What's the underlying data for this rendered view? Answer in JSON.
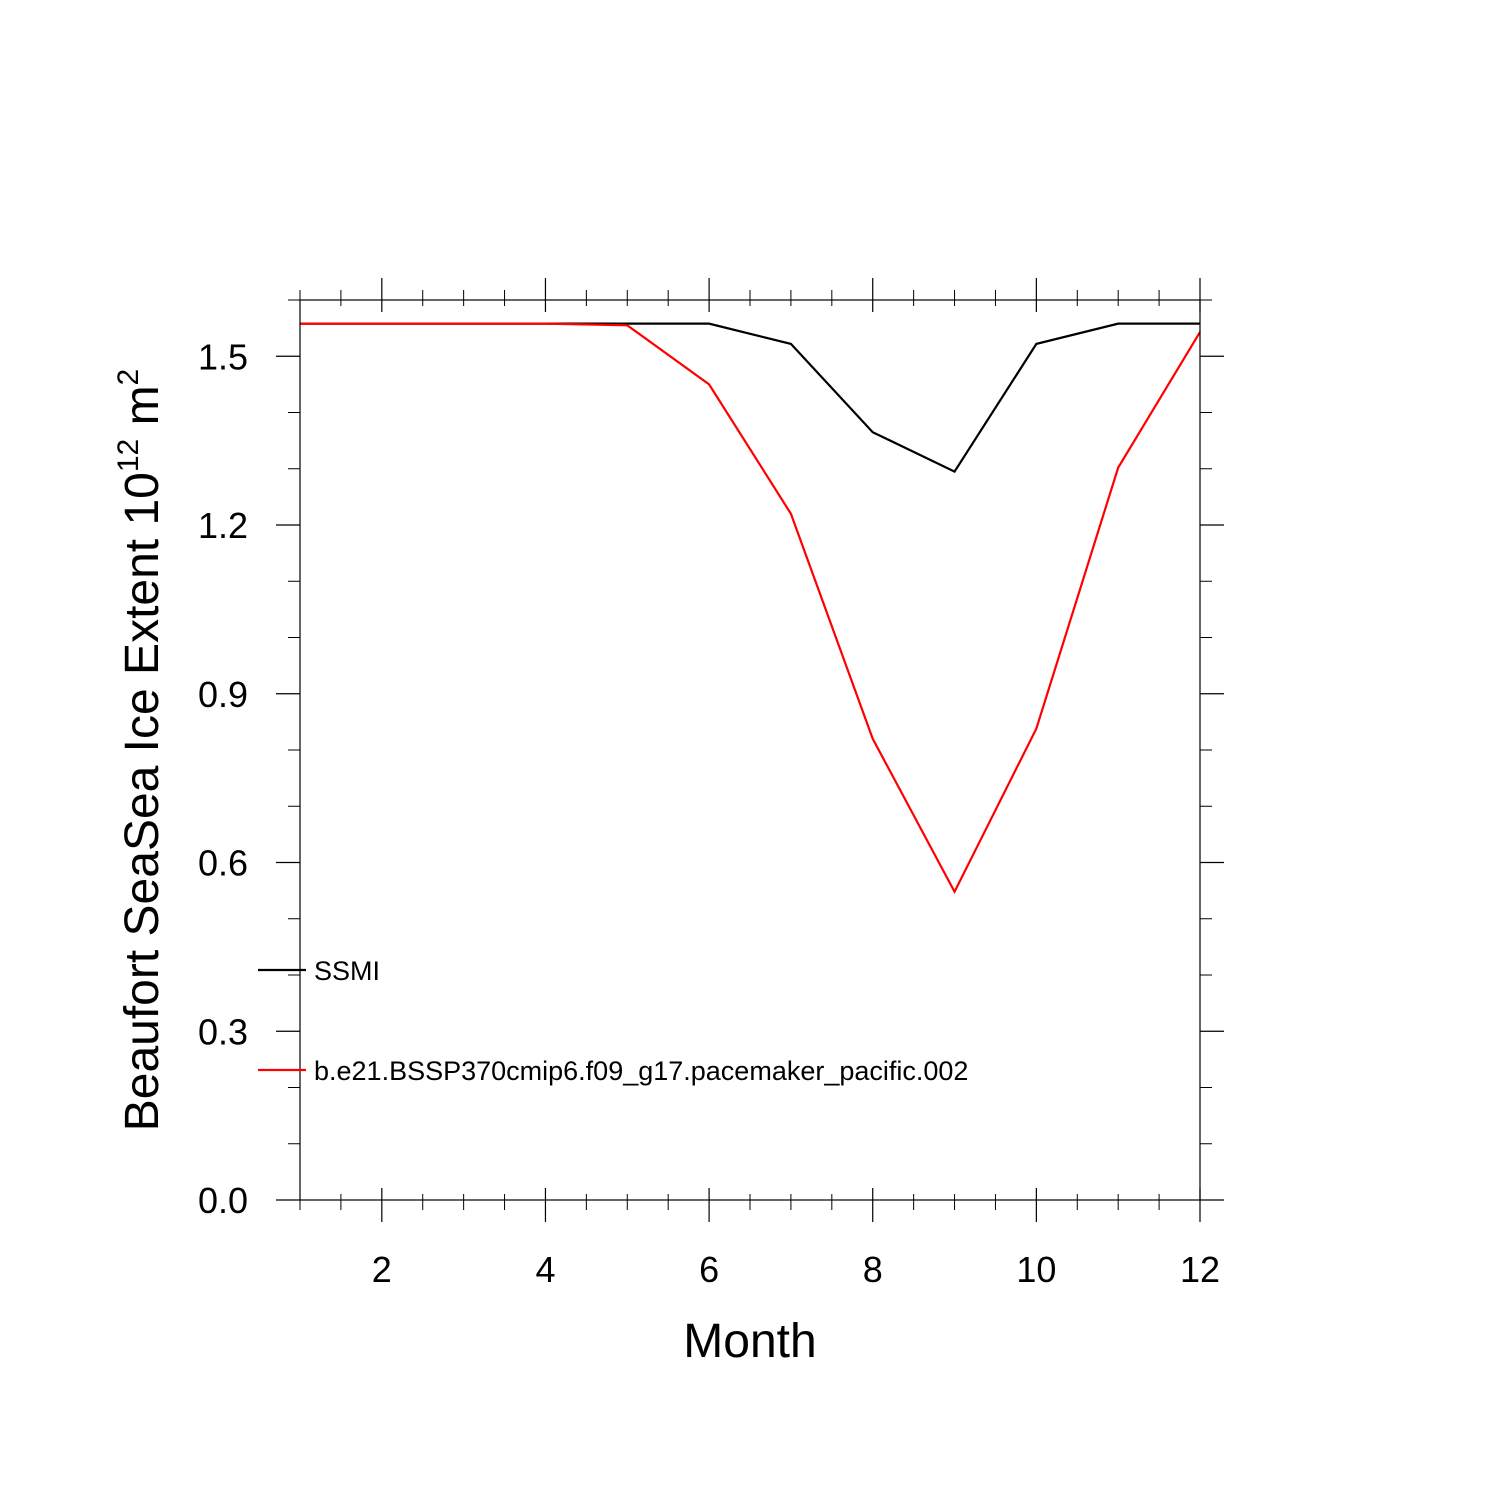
{
  "chart_data": {
    "type": "line",
    "title": "",
    "xlabel": "Month",
    "ylabel_main": "Beaufort SeaSea Ice Extent 10",
    "ylabel_sup": "12",
    "ylabel_tail": " m",
    "ylabel_sup2": "2",
    "xlim": [
      1,
      12
    ],
    "ylim": [
      0,
      1.6
    ],
    "x_ticks": [
      2,
      4,
      6,
      8,
      10,
      12
    ],
    "x_tick_labels": [
      "2",
      "4",
      "6",
      "8",
      "10",
      "12"
    ],
    "y_ticks": [
      0.0,
      0.3,
      0.6,
      0.9,
      1.2,
      1.5
    ],
    "y_tick_labels": [
      "0.0",
      "0.3",
      "0.6",
      "0.9",
      "1.2",
      "1.5"
    ],
    "x": [
      1,
      2,
      3,
      4,
      5,
      6,
      7,
      8,
      9,
      10,
      11,
      12
    ],
    "series": [
      {
        "name": "SSMI",
        "color": "#000000",
        "values": [
          1.558,
          1.558,
          1.558,
          1.558,
          1.558,
          1.558,
          1.522,
          1.365,
          1.295,
          1.522,
          1.558,
          1.558
        ]
      },
      {
        "name": "b.e21.BSSP370cmip6.f09_g17.pacemaker_pacific.002",
        "color": "#ff0000",
        "values": [
          1.558,
          1.558,
          1.558,
          1.558,
          1.555,
          1.45,
          1.22,
          0.82,
          0.548,
          0.838,
          1.302,
          1.543
        ]
      }
    ],
    "legend_placement": "lower-left inside",
    "grid": false
  }
}
